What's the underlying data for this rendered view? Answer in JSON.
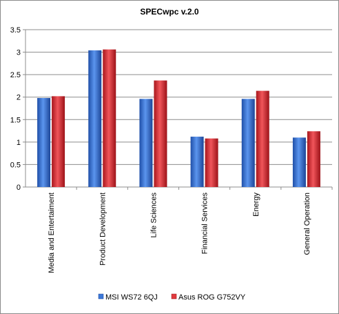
{
  "chart_data": {
    "type": "bar",
    "title": "SPECwpc v.2.0",
    "xlabel": "",
    "ylabel": "",
    "ylim": [
      0,
      3.5
    ],
    "yticks": [
      "0",
      "0.5",
      "1",
      "1.5",
      "2",
      "2.5",
      "3",
      "3.5"
    ],
    "grid": true,
    "legend_position": "bottom",
    "categories": [
      "Media and Entertaiment",
      "Product Development",
      "Life Sciences",
      "Financial Services",
      "Energy",
      "General Operation"
    ],
    "series": [
      {
        "name": "MSI WS72 6QJ",
        "color": "#3c78d8",
        "values": [
          1.98,
          3.04,
          1.96,
          1.12,
          1.96,
          1.1
        ]
      },
      {
        "name": "Asus ROG G752VY",
        "color": "#e03a3e",
        "values": [
          2.02,
          3.06,
          2.37,
          1.08,
          2.14,
          1.24
        ]
      }
    ]
  }
}
